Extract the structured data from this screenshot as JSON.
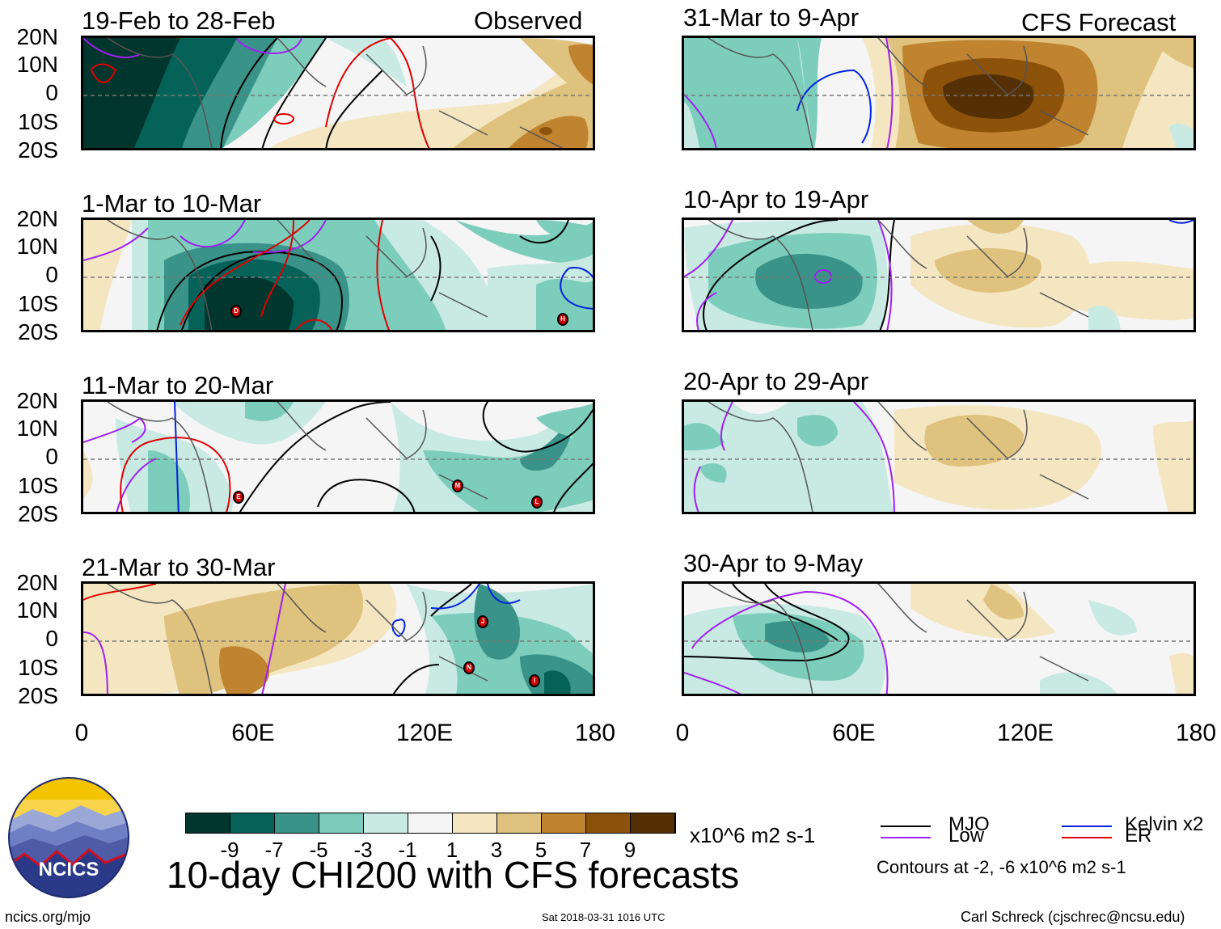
{
  "title": "10-day CHI200 with CFS forecasts",
  "observed_label": "Observed",
  "forecast_label": "CFS Forecast",
  "lat_labels": [
    "20N",
    "10N",
    "0",
    "10S",
    "20S"
  ],
  "lon_labels": [
    "0",
    "60E",
    "120E",
    "180"
  ],
  "left_panels": [
    {
      "title": "19-Feb to 28-Feb"
    },
    {
      "title": "1-Mar to 10-Mar"
    },
    {
      "title": "11-Mar to 20-Mar"
    },
    {
      "title": "21-Mar to 30-Mar"
    }
  ],
  "right_panels": [
    {
      "title": "31-Mar to 9-Apr"
    },
    {
      "title": "10-Apr to 19-Apr"
    },
    {
      "title": "20-Apr to 29-Apr"
    },
    {
      "title": "30-Apr to 9-May"
    }
  ],
  "storms": [
    {
      "panel": 1,
      "label": "D"
    },
    {
      "panel": 1,
      "label": "H"
    },
    {
      "panel": 2,
      "label": "E"
    },
    {
      "panel": 2,
      "label": "M"
    },
    {
      "panel": 2,
      "label": "L"
    },
    {
      "panel": 3,
      "label": "J"
    },
    {
      "panel": 3,
      "label": "N"
    },
    {
      "panel": 3,
      "label": "I"
    }
  ],
  "colorbar": {
    "colors": [
      "#01362e",
      "#046259",
      "#3a9388",
      "#7dcdbd",
      "#c8eae3",
      "#f5f5f5",
      "#f5e6c2",
      "#dfc27e",
      "#c08330",
      "#8c520a",
      "#553005"
    ],
    "labels": [
      "-9",
      "-7",
      "-5",
      "-3",
      "-1",
      "1",
      "3",
      "5",
      "7",
      "9"
    ],
    "units": "x10^6 m2 s-1"
  },
  "legend": {
    "items": [
      {
        "label": "MJO",
        "color": "#000000"
      },
      {
        "label": "Kelvin x2",
        "color": "#0022dd"
      },
      {
        "label": "Low",
        "color": "#a020f0"
      },
      {
        "label": "ER",
        "color": "#e00000"
      }
    ],
    "contours_note": "Contours at -2, -6 x10^6 m2 s-1"
  },
  "logo_text": "NCICS",
  "footer": {
    "url": "ncics.org/mjo",
    "timestamp": "Sat 2018-03-31 1016 UTC",
    "credit": "Carl Schreck (cjschrec@ncsu.edu)"
  }
}
